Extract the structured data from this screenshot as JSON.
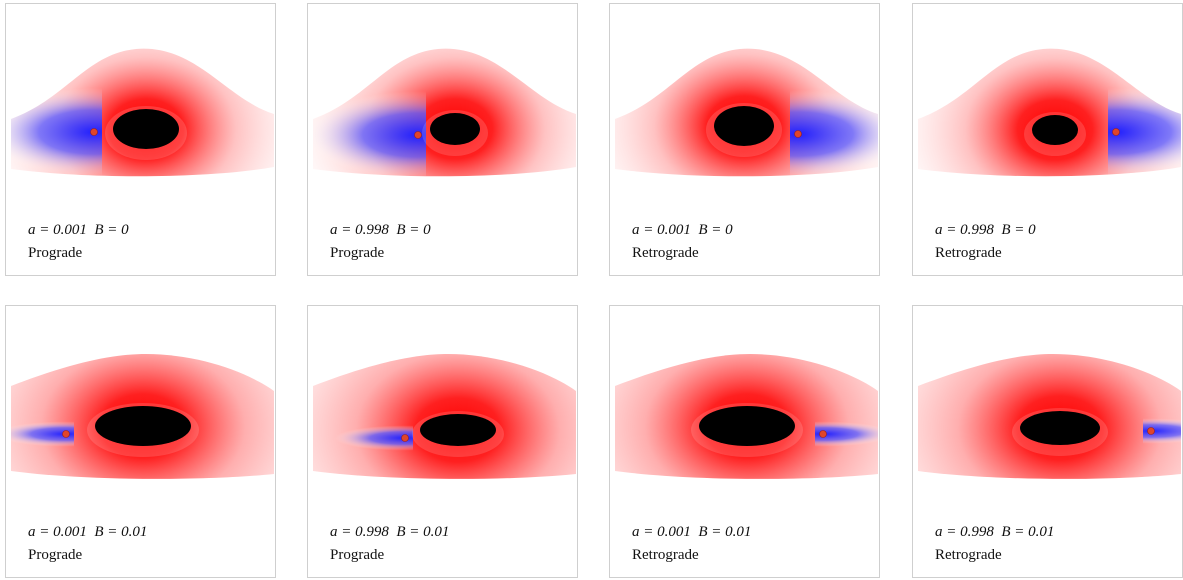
{
  "panels": [
    {
      "label": "a = 0.001  B = 0",
      "direction": "Prograde"
    },
    {
      "label": "a = 0.998  B = 0",
      "direction": "Prograde"
    },
    {
      "label": "a = 0.001  B = 0",
      "direction": "Retrograde"
    },
    {
      "label": "a = 0.998  B = 0",
      "direction": "Retrograde"
    },
    {
      "label": "a = 0.001  B = 0.01",
      "direction": "Prograde"
    },
    {
      "label": "a = 0.998  B = 0.01",
      "direction": "Prograde"
    },
    {
      "label": "a = 0.001  B = 0.01",
      "direction": "Retrograde"
    },
    {
      "label": "a = 0.998  B = 0.01",
      "direction": "Retrograde"
    }
  ]
}
